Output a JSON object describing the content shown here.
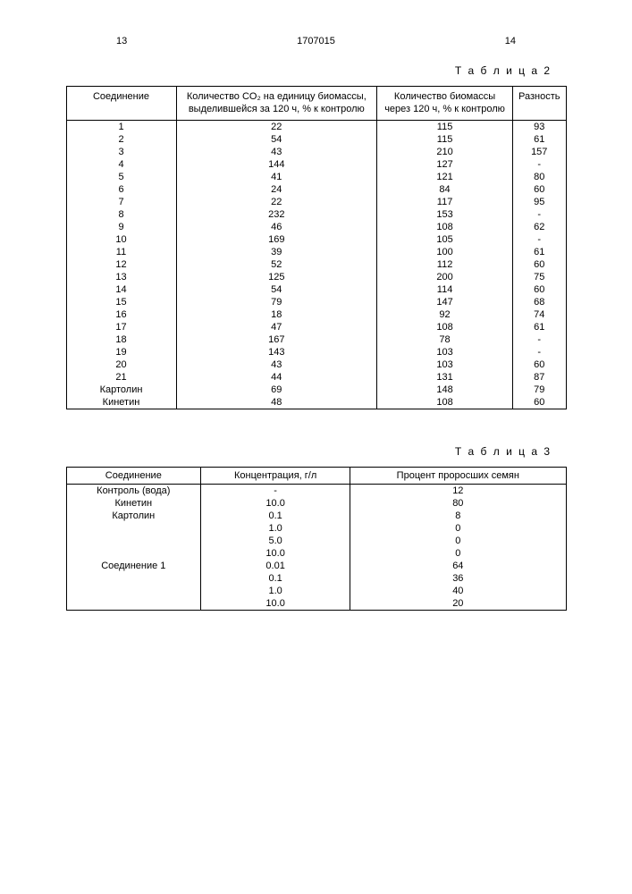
{
  "header": {
    "left_page": "13",
    "doc_number": "1707015",
    "right_page": "14"
  },
  "table2": {
    "label": "Т а б л и ц а 2",
    "columns": [
      "Соединение",
      "Количество CO₂ на единицу биомассы, выделившейся за 120 ч, % к контролю",
      "Количество биомассы через 120 ч, % к контролю",
      "Разность"
    ],
    "rows": [
      [
        "1",
        "22",
        "115",
        "93"
      ],
      [
        "2",
        "54",
        "115",
        "61"
      ],
      [
        "3",
        "43",
        "210",
        "157"
      ],
      [
        "4",
        "144",
        "127",
        "-"
      ],
      [
        "5",
        "41",
        "121",
        "80"
      ],
      [
        "6",
        "24",
        "84",
        "60"
      ],
      [
        "7",
        "22",
        "117",
        "95"
      ],
      [
        "8",
        "232",
        "153",
        "-"
      ],
      [
        "9",
        "46",
        "108",
        "62"
      ],
      [
        "10",
        "169",
        "105",
        "-"
      ],
      [
        "11",
        "39",
        "100",
        "61"
      ],
      [
        "12",
        "52",
        "112",
        "60"
      ],
      [
        "13",
        "125",
        "200",
        "75"
      ],
      [
        "14",
        "54",
        "114",
        "60"
      ],
      [
        "15",
        "79",
        "147",
        "68"
      ],
      [
        "16",
        "18",
        "92",
        "74"
      ],
      [
        "17",
        "47",
        "108",
        "61"
      ],
      [
        "18",
        "167",
        "78",
        "-"
      ],
      [
        "19",
        "143",
        "103",
        "-"
      ],
      [
        "20",
        "43",
        "103",
        "60"
      ],
      [
        "21",
        "44",
        "131",
        "87"
      ],
      [
        "Картолин",
        "69",
        "148",
        "79"
      ],
      [
        "Кинетин",
        "48",
        "108",
        "60"
      ]
    ]
  },
  "table3": {
    "label": "Т а б л и ц а 3",
    "columns": [
      "Соединение",
      "Концентрация, г/л",
      "Процент проросших семян"
    ],
    "rows": [
      [
        "Контроль (вода)",
        "-",
        "12"
      ],
      [
        "Кинетин",
        "10.0",
        "80"
      ],
      [
        "Картолин",
        "0.1",
        "8"
      ],
      [
        "",
        "1.0",
        "0"
      ],
      [
        "",
        "5.0",
        "0"
      ],
      [
        "",
        "10.0",
        "0"
      ],
      [
        "Соединение 1",
        "0.01",
        "64"
      ],
      [
        "",
        "0.1",
        "36"
      ],
      [
        "",
        "1.0",
        "40"
      ],
      [
        "",
        "10.0",
        "20"
      ]
    ]
  }
}
